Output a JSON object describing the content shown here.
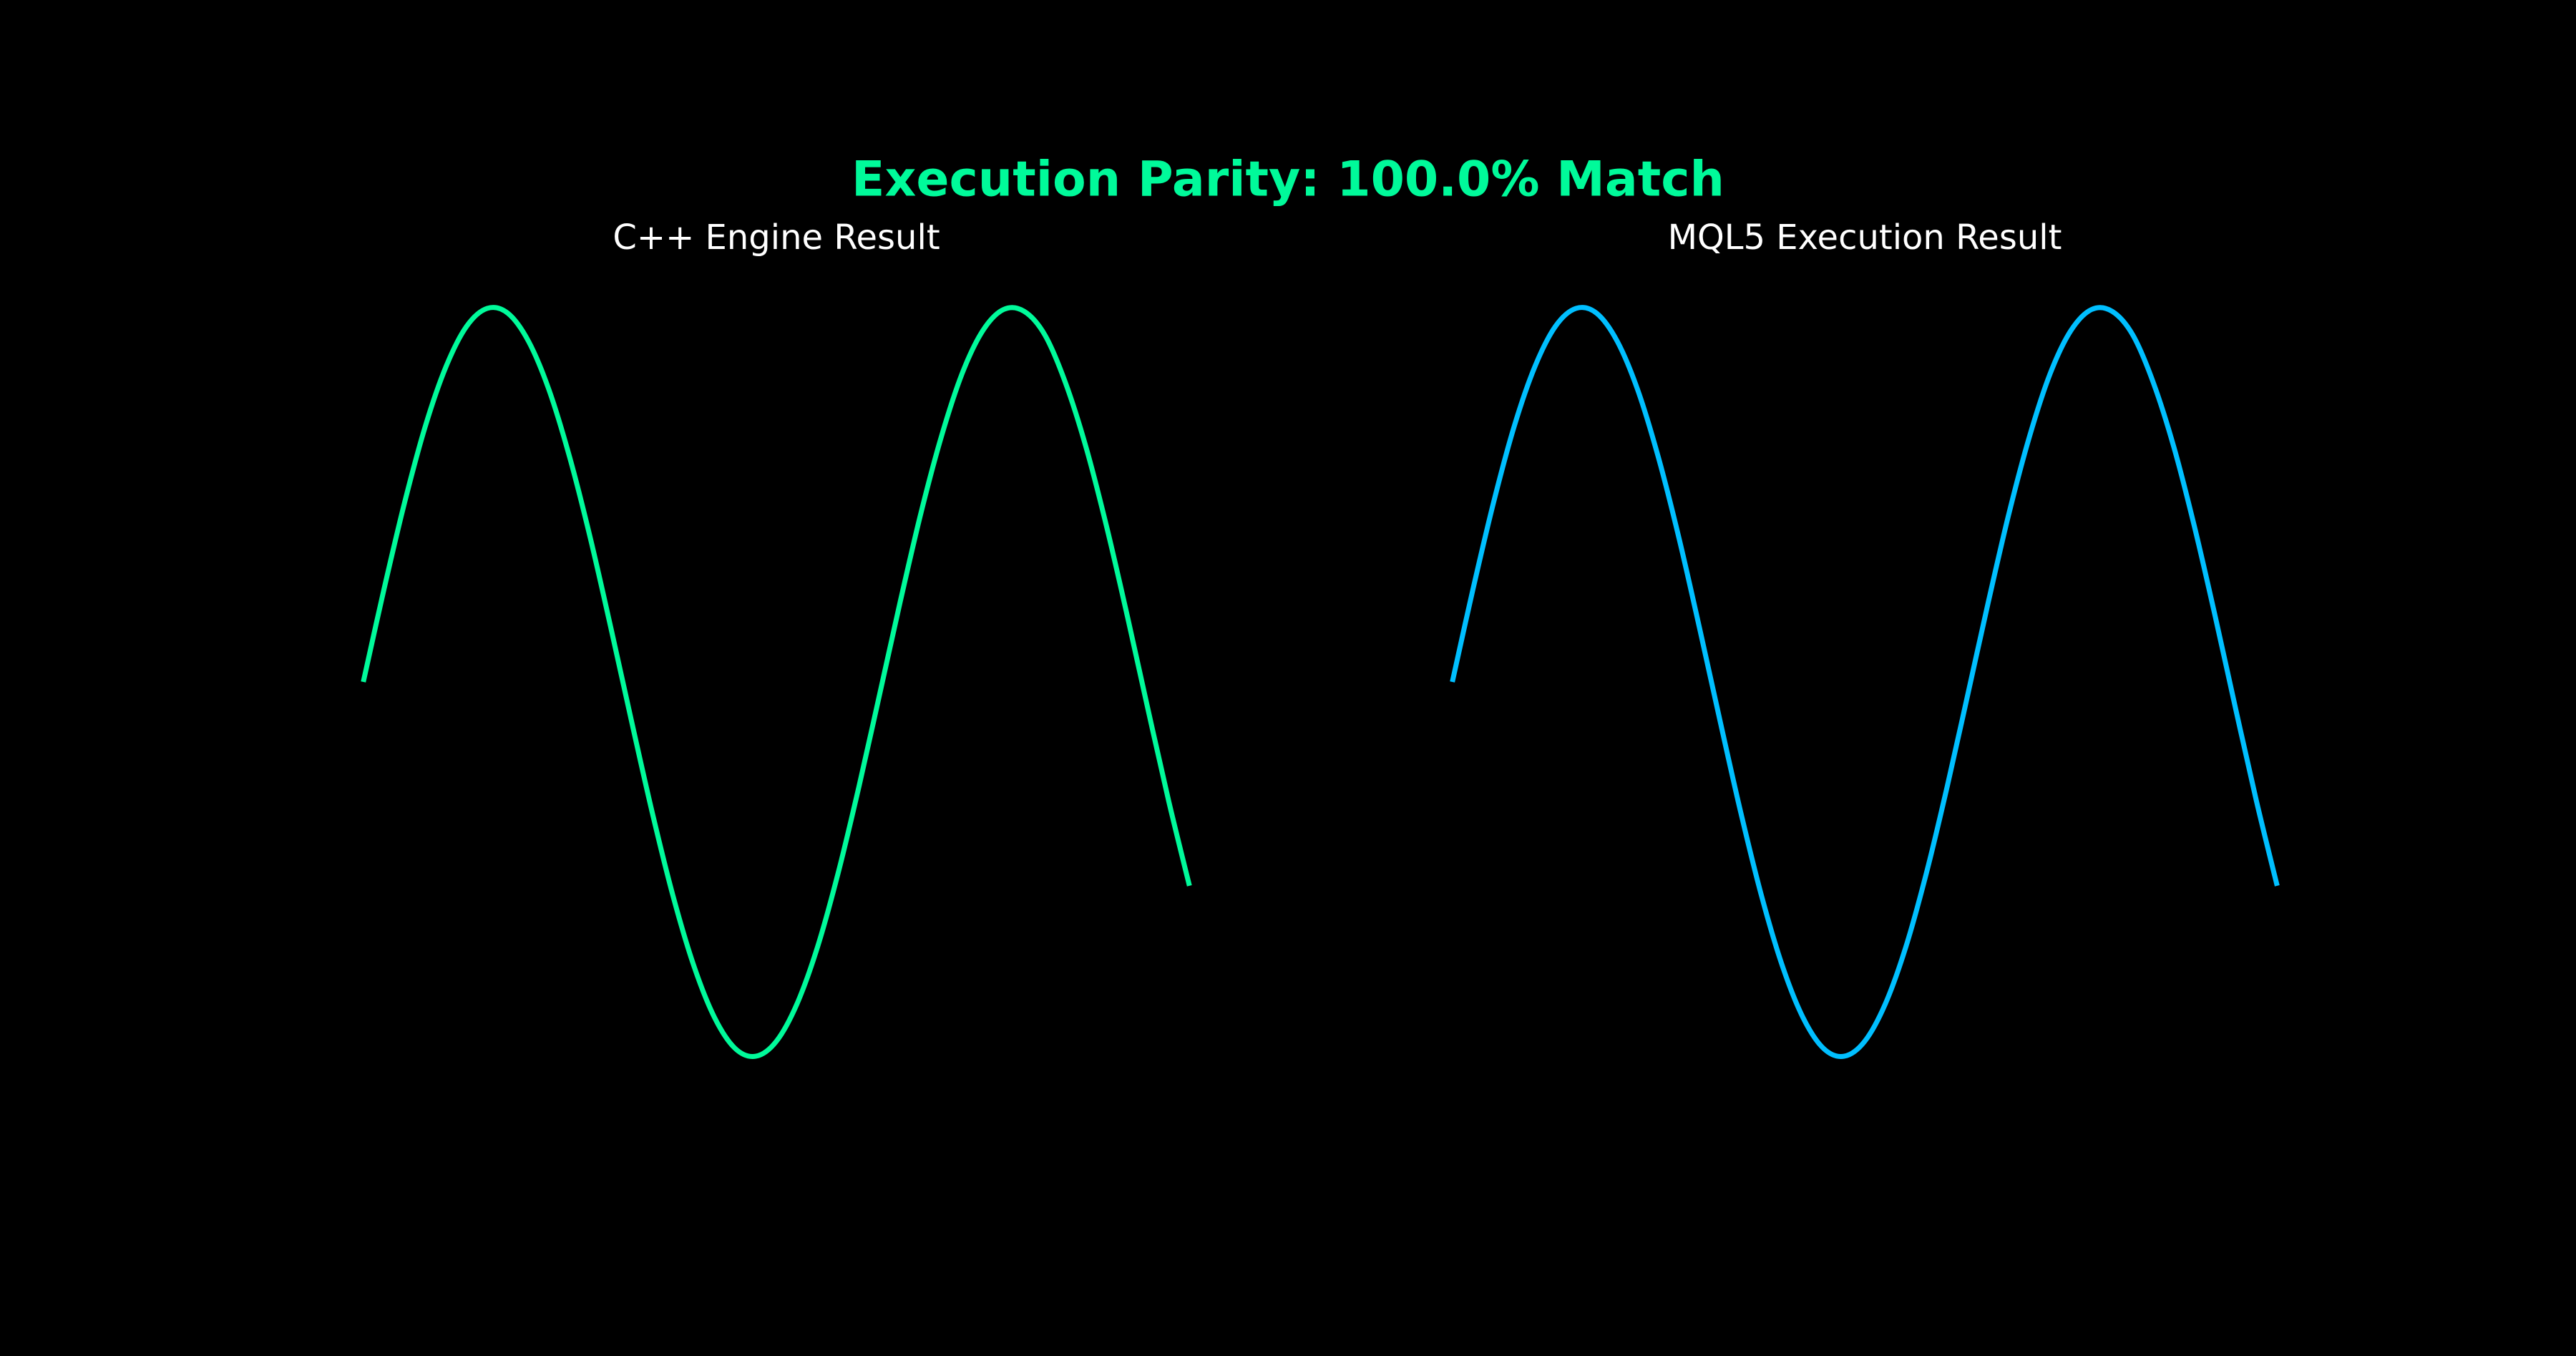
{
  "title": "Execution Parity: 100.0% Match",
  "title_color": "#00fa9a",
  "chart_data": [
    {
      "type": "line",
      "title": "C++ Engine Result",
      "color": "#00fa9a",
      "x": [
        0,
        0.25,
        0.5,
        0.75,
        1,
        1.25,
        1.5,
        1.75,
        2,
        2.25,
        2.5,
        2.75,
        3,
        3.25,
        3.5,
        3.75,
        4,
        4.25,
        4.5,
        4.75,
        5,
        5.25,
        5.5,
        5.75,
        6,
        6.25,
        6.5,
        6.75,
        7,
        7.25,
        7.5,
        7.75,
        8,
        8.25,
        8.5,
        8.75,
        9,
        9.25,
        9.5,
        9.75,
        10
      ],
      "values": [
        0,
        0.247,
        0.479,
        0.682,
        0.841,
        0.949,
        0.997,
        0.984,
        0.909,
        0.778,
        0.598,
        0.382,
        0.141,
        -0.108,
        -0.351,
        -0.572,
        -0.757,
        -0.895,
        -0.978,
        -0.999,
        -0.959,
        -0.859,
        -0.706,
        -0.508,
        -0.279,
        -0.033,
        0.215,
        0.451,
        0.657,
        0.824,
        0.938,
        0.994,
        0.989,
        0.926,
        0.798,
        0.625,
        0.412,
        0.174,
        -0.075,
        -0.319,
        -0.544
      ],
      "xlim": [
        -0.5,
        10.5
      ],
      "ylim": [
        -1.1,
        1.1
      ]
    },
    {
      "type": "line",
      "title": "MQL5 Execution Result",
      "color": "#00bfff",
      "x": [
        0,
        0.25,
        0.5,
        0.75,
        1,
        1.25,
        1.5,
        1.75,
        2,
        2.25,
        2.5,
        2.75,
        3,
        3.25,
        3.5,
        3.75,
        4,
        4.25,
        4.5,
        4.75,
        5,
        5.25,
        5.5,
        5.75,
        6,
        6.25,
        6.5,
        6.75,
        7,
        7.25,
        7.5,
        7.75,
        8,
        8.25,
        8.5,
        8.75,
        9,
        9.25,
        9.5,
        9.75,
        10
      ],
      "values": [
        0,
        0.247,
        0.479,
        0.682,
        0.841,
        0.949,
        0.997,
        0.984,
        0.909,
        0.778,
        0.598,
        0.382,
        0.141,
        -0.108,
        -0.351,
        -0.572,
        -0.757,
        -0.895,
        -0.978,
        -0.999,
        -0.959,
        -0.859,
        -0.706,
        -0.508,
        -0.279,
        -0.033,
        0.215,
        0.451,
        0.657,
        0.824,
        0.938,
        0.994,
        0.989,
        0.926,
        0.798,
        0.625,
        0.412,
        0.174,
        -0.075,
        -0.319,
        -0.544
      ],
      "xlim": [
        -0.5,
        10.5
      ],
      "ylim": [
        -1.1,
        1.1
      ]
    }
  ]
}
